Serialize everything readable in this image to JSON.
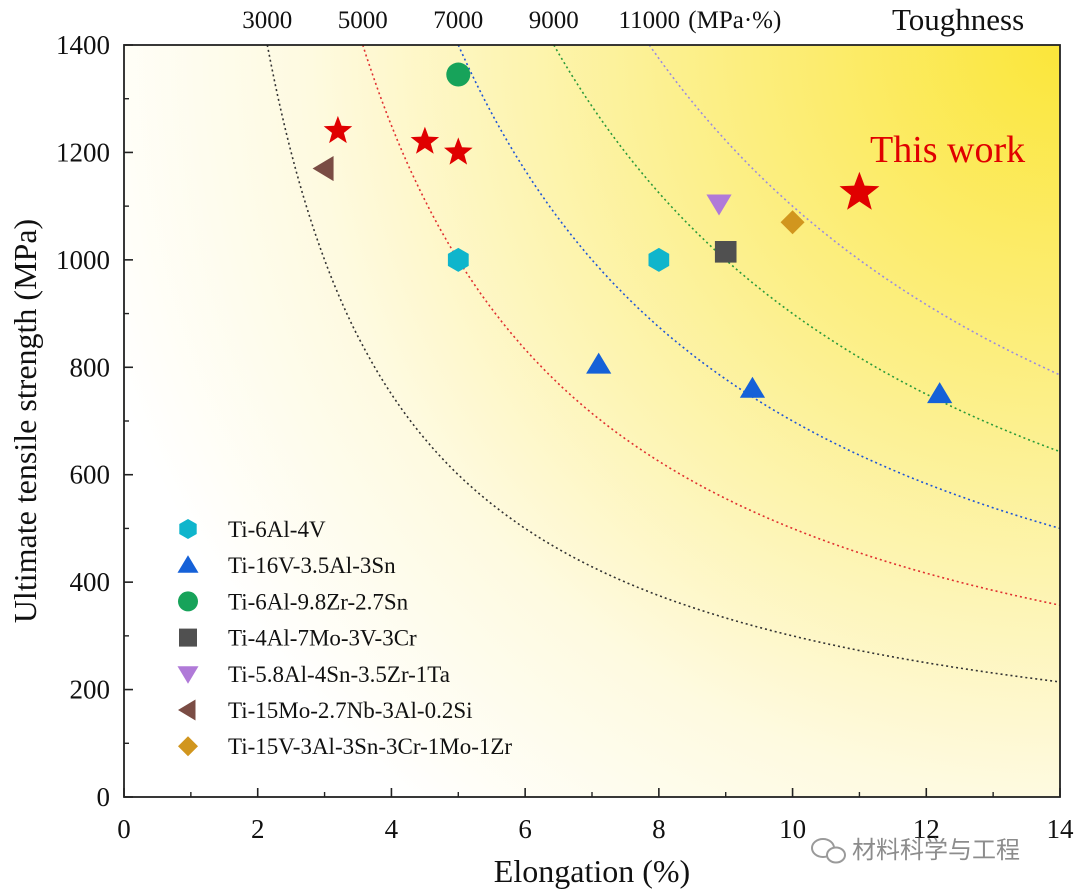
{
  "chart_data": {
    "type": "scatter",
    "xlabel": "Elongation (%)",
    "ylabel": "Ultimate tensile strength (MPa)",
    "xlim": [
      0,
      14
    ],
    "ylim": [
      0,
      1400
    ],
    "xticks": [
      0,
      2,
      4,
      6,
      8,
      10,
      12,
      14
    ],
    "yticks": [
      0,
      200,
      400,
      600,
      800,
      1000,
      1200,
      1400
    ],
    "toughness_label": "Toughness",
    "toughness_unit": "(MPa·%)",
    "toughness_levels": [
      {
        "value": 3000,
        "label": "3000",
        "color": "#333333"
      },
      {
        "value": 5000,
        "label": "5000",
        "color": "#e03030"
      },
      {
        "value": 7000,
        "label": "7000",
        "color": "#1f55d6"
      },
      {
        "value": 9000,
        "label": "9000",
        "color": "#2a9a3a"
      },
      {
        "value": 11000,
        "label": "11000",
        "color": "#9a8be0"
      }
    ],
    "annotation": {
      "text": "This work",
      "color": "#e00000"
    },
    "this_work": [
      {
        "x": 3.2,
        "y": 1240
      },
      {
        "x": 4.5,
        "y": 1220
      },
      {
        "x": 5.0,
        "y": 1200
      },
      {
        "x": 11.0,
        "y": 1125
      }
    ],
    "series": [
      {
        "name": "Ti-6Al-4V",
        "marker": "hexagon",
        "color": "#0fb5cc",
        "points": [
          {
            "x": 5.0,
            "y": 1000
          },
          {
            "x": 8.0,
            "y": 1000
          }
        ]
      },
      {
        "name": "Ti-16V-3.5Al-3Sn",
        "marker": "triangle-up",
        "color": "#1561d8",
        "points": [
          {
            "x": 7.1,
            "y": 805
          },
          {
            "x": 9.4,
            "y": 760
          },
          {
            "x": 12.2,
            "y": 750
          }
        ]
      },
      {
        "name": "Ti-6Al-9.8Zr-2.7Sn",
        "marker": "circle",
        "color": "#17a35a",
        "points": [
          {
            "x": 5.0,
            "y": 1345
          }
        ]
      },
      {
        "name": "Ti-4Al-7Mo-3V-3Cr",
        "marker": "square",
        "color": "#505050",
        "points": [
          {
            "x": 9.0,
            "y": 1015
          }
        ]
      },
      {
        "name": "Ti-5.8Al-4Sn-3.5Zr-1Ta",
        "marker": "triangle-down",
        "color": "#b07ad8",
        "points": [
          {
            "x": 8.9,
            "y": 1105
          }
        ]
      },
      {
        "name": "Ti-15Mo-2.7Nb-3Al-0.2Si",
        "marker": "triangle-left",
        "color": "#7a4c44",
        "points": [
          {
            "x": 3.0,
            "y": 1170
          }
        ]
      },
      {
        "name": "Ti-15V-3Al-3Sn-3Cr-1Mo-1Zr",
        "marker": "diamond",
        "color": "#d1961e",
        "points": [
          {
            "x": 10.0,
            "y": 1070
          }
        ]
      }
    ]
  },
  "watermark": {
    "text": "材料科学与工程"
  }
}
